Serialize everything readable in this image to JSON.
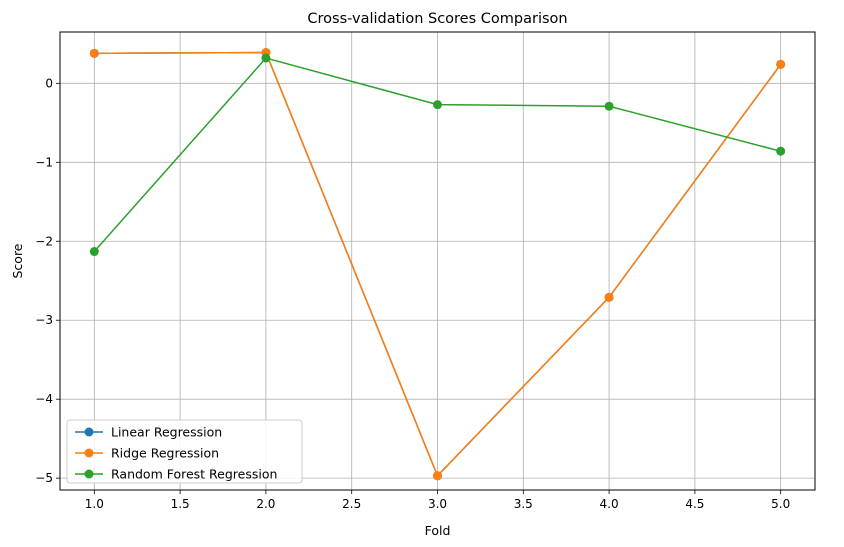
{
  "chart_data": {
    "type": "line",
    "title": "Cross-validation Scores Comparison",
    "xlabel": "Fold",
    "ylabel": "Score",
    "x": [
      1,
      2,
      3,
      4,
      5
    ],
    "xlim": [
      0.8,
      5.2
    ],
    "ylim": [
      -5.15,
      0.65
    ],
    "xticks": [
      "1.0",
      "1.5",
      "2.0",
      "2.5",
      "3.0",
      "3.5",
      "4.0",
      "4.5",
      "5.0"
    ],
    "yticks": [
      "0",
      "−1",
      "−2",
      "−3",
      "−4",
      "−5"
    ],
    "grid": true,
    "legend_position": "lower-left",
    "series": [
      {
        "name": "Linear Regression",
        "color": "#1f77b4",
        "marker": "circle",
        "values": [
          0.38,
          0.39,
          -4.97,
          -2.71,
          0.24
        ]
      },
      {
        "name": "Ridge Regression",
        "color": "#ff7f0e",
        "marker": "circle",
        "values": [
          0.38,
          0.39,
          -4.97,
          -2.71,
          0.24
        ]
      },
      {
        "name": "Random Forest Regression",
        "color": "#2ca02c",
        "marker": "circle",
        "values": [
          -2.13,
          0.32,
          -0.27,
          -0.29,
          -0.86
        ]
      }
    ]
  }
}
